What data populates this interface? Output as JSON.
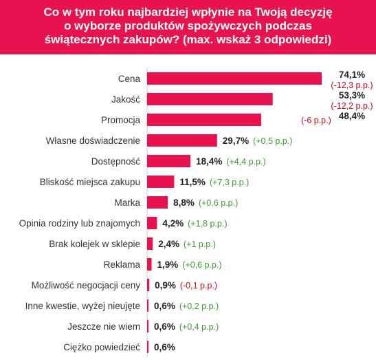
{
  "header": {
    "title_lines": [
      "Co w tym roku najbardziej wpłynie na Twoją decyzję",
      "o wyborze produktów spożywczych podczas",
      "świątecznych zakupów? (max. wskaż 3 odpowiedzi)"
    ]
  },
  "colors": {
    "header_bg": "#e8124f",
    "bar": "#e8124f",
    "negative": "#d0021b",
    "positive": "#3a9a2e",
    "axis": "#c8c8c8"
  },
  "chart_data": {
    "type": "bar",
    "orientation": "horizontal",
    "title": "Co w tym roku najbardziej wpłynie na Twoją decyzję o wyborze produktów spożywczych podczas świątecznych zakupów? (max. wskaż 3 odpowiedzi)",
    "categories": [
      "Cena",
      "Jakość",
      "Promocja",
      "Własne doświadczenie",
      "Dostępność",
      "Bliskość miejsca zakupu",
      "Marka",
      "Opinia rodziny lub znajomych",
      "Brak kolejek w sklepie",
      "Reklama",
      "Możliwość negocjacji ceny",
      "Inne kwestie, wyżej nieujęte",
      "Jeszcze nie wiem",
      "Ciężko powiedzieć"
    ],
    "values": [
      74.1,
      53.3,
      48.4,
      29.7,
      18.4,
      11.5,
      8.8,
      4.2,
      2.4,
      1.9,
      0.9,
      0.6,
      0.6,
      0.6
    ],
    "value_labels": [
      "74,1%",
      "53,3%",
      "48,4%",
      "29,7%",
      "18,4%",
      "11,5%",
      "8,8%",
      "4,2%",
      "2,4%",
      "1,9%",
      "0,9%",
      "0,6%",
      "0,6%",
      "0,6%"
    ],
    "changes": [
      "(-12,3 p.p.)",
      "(-12,2 p.p.)",
      "(-6 p.p.)",
      "(+0,5 p.p.)",
      "(+4,4 p.p.)",
      "(+7,3 p.p.)",
      "(+0,6 p.p.)",
      "(+1,8 p.p.)",
      "(+1 p.p.)",
      "(+0,6 p.p.)",
      "(-0,1 p.p.)",
      "(+0,2 p.p.)",
      "(+0,4 p.p.)",
      ""
    ],
    "change_signs": [
      "negative",
      "negative",
      "negative",
      "positive",
      "positive",
      "positive",
      "positive",
      "positive",
      "positive",
      "positive",
      "negative",
      "positive",
      "positive",
      ""
    ],
    "xlim": [
      0,
      74.1
    ]
  }
}
